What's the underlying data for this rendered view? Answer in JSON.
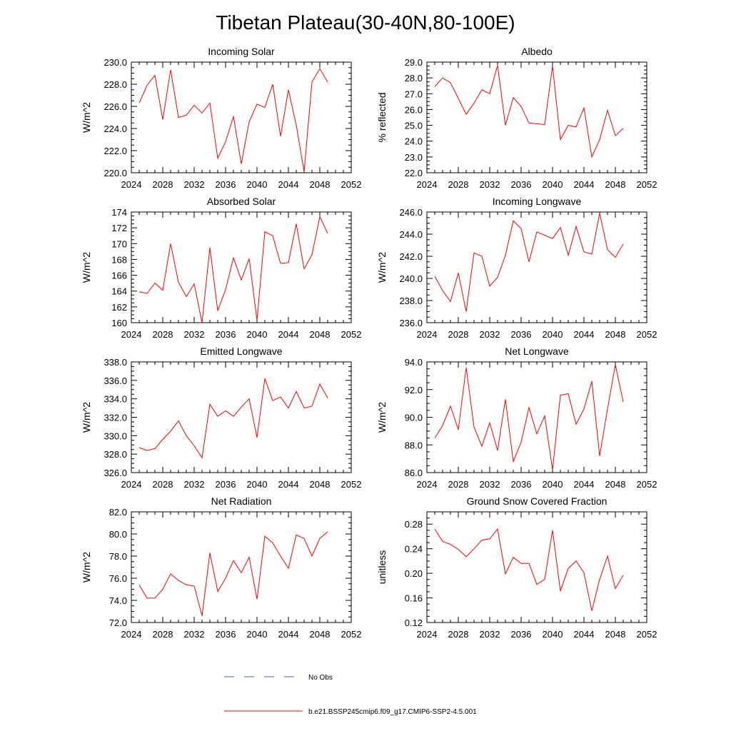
{
  "title": "Tibetan Plateau(30-40N,80-100E)",
  "colors": {
    "model": "#ff0000",
    "obs": "#4a5fd0",
    "axis": "#000000"
  },
  "legend": {
    "obs_label": "No Obs",
    "model_label": "b.e21.BSSP245cmip6.f09_g17.CMIP6-SSP2-4.5.001"
  },
  "chart_data": [
    {
      "type": "line",
      "title": "Incoming Solar",
      "xlabel": "",
      "ylabel": "W/m^2",
      "xlim": [
        2024,
        2052
      ],
      "ylim": [
        220,
        230
      ],
      "xticks": [
        2024,
        2028,
        2032,
        2036,
        2040,
        2044,
        2048,
        2052
      ],
      "yticks": [
        220,
        222,
        224,
        226,
        228,
        230
      ],
      "ytick_labels": [
        "220.0",
        "222.0",
        "224.0",
        "226.0",
        "228.0",
        "230.0"
      ],
      "x": [
        2025,
        2026,
        2027,
        2028,
        2029,
        2030,
        2031,
        2032,
        2033,
        2034,
        2035,
        2036,
        2037,
        2038,
        2039,
        2040,
        2041,
        2042,
        2043,
        2044,
        2045,
        2046,
        2047,
        2048,
        2049
      ],
      "series": [
        {
          "values": [
            226.3,
            227.9,
            228.8,
            224.8,
            229.3,
            225.0,
            225.2,
            226.1,
            225.4,
            226.3,
            221.3,
            222.8,
            225.1,
            220.8,
            224.6,
            226.2,
            225.9,
            228.0,
            223.3,
            227.5,
            224.3,
            220.1,
            228.2,
            229.4,
            228.2
          ]
        }
      ]
    },
    {
      "type": "line",
      "title": "Albedo",
      "xlabel": "",
      "ylabel": "% reflected",
      "xlim": [
        2024,
        2052
      ],
      "ylim": [
        22,
        29
      ],
      "xticks": [
        2024,
        2028,
        2032,
        2036,
        2040,
        2044,
        2048,
        2052
      ],
      "yticks": [
        22,
        23,
        24,
        25,
        26,
        27,
        28,
        29
      ],
      "ytick_labels": [
        "22.0",
        "23.0",
        "24.0",
        "25.0",
        "26.0",
        "27.0",
        "28.0",
        "29.0"
      ],
      "x": [
        2025,
        2026,
        2027,
        2028,
        2029,
        2030,
        2031,
        2032,
        2033,
        2034,
        2035,
        2036,
        2037,
        2038,
        2039,
        2040,
        2041,
        2042,
        2043,
        2044,
        2045,
        2046,
        2047,
        2048,
        2049
      ],
      "series": [
        {
          "values": [
            27.45,
            28.0,
            27.7,
            26.7,
            25.7,
            26.4,
            27.25,
            27.0,
            28.8,
            25.0,
            26.75,
            26.2,
            25.15,
            25.1,
            25.05,
            28.75,
            24.1,
            25.0,
            24.9,
            26.1,
            23.0,
            24.1,
            25.95,
            24.35,
            24.8
          ]
        }
      ]
    },
    {
      "type": "line",
      "title": "Absorbed Solar",
      "xlabel": "",
      "ylabel": "W/m^2",
      "xlim": [
        2024,
        2052
      ],
      "ylim": [
        160,
        174
      ],
      "xticks": [
        2024,
        2028,
        2032,
        2036,
        2040,
        2044,
        2048,
        2052
      ],
      "yticks": [
        160,
        162,
        164,
        166,
        168,
        170,
        172,
        174
      ],
      "ytick_labels": [
        "160",
        "162",
        "164",
        "166",
        "168",
        "170",
        "172",
        "174"
      ],
      "x": [
        2025,
        2026,
        2027,
        2028,
        2029,
        2030,
        2031,
        2032,
        2033,
        2034,
        2035,
        2036,
        2037,
        2038,
        2039,
        2040,
        2041,
        2042,
        2043,
        2044,
        2045,
        2046,
        2047,
        2048,
        2049
      ],
      "series": [
        {
          "values": [
            163.9,
            163.7,
            165.0,
            164.1,
            170.0,
            165.1,
            163.3,
            164.9,
            160.0,
            169.5,
            161.5,
            164.2,
            168.2,
            165.4,
            168.1,
            160.3,
            171.5,
            171.0,
            167.5,
            167.6,
            172.5,
            166.8,
            168.6,
            173.4,
            171.3
          ]
        }
      ]
    },
    {
      "type": "line",
      "title": "Incoming Longwave",
      "xlabel": "",
      "ylabel": "W/m^2",
      "xlim": [
        2024,
        2052
      ],
      "ylim": [
        236,
        246
      ],
      "xticks": [
        2024,
        2028,
        2032,
        2036,
        2040,
        2044,
        2048,
        2052
      ],
      "yticks": [
        236,
        238,
        240,
        242,
        244,
        246
      ],
      "ytick_labels": [
        "236.0",
        "238.0",
        "240.0",
        "242.0",
        "244.0",
        "246.0"
      ],
      "x": [
        2025,
        2026,
        2027,
        2028,
        2029,
        2030,
        2031,
        2032,
        2033,
        2034,
        2035,
        2036,
        2037,
        2038,
        2039,
        2040,
        2041,
        2042,
        2043,
        2044,
        2045,
        2046,
        2047,
        2048,
        2049
      ],
      "series": [
        {
          "values": [
            240.2,
            238.9,
            237.9,
            240.5,
            237.0,
            242.3,
            242.0,
            239.3,
            240.1,
            242.1,
            245.2,
            244.5,
            241.5,
            244.2,
            243.9,
            243.6,
            244.6,
            242.1,
            244.7,
            242.4,
            242.2,
            245.9,
            242.6,
            241.9,
            243.1
          ]
        }
      ]
    },
    {
      "type": "line",
      "title": "Emitted Longwave",
      "xlabel": "",
      "ylabel": "W/m^2",
      "xlim": [
        2024,
        2052
      ],
      "ylim": [
        326,
        338
      ],
      "xticks": [
        2024,
        2028,
        2032,
        2036,
        2040,
        2044,
        2048,
        2052
      ],
      "yticks": [
        326,
        328,
        330,
        332,
        334,
        336,
        338
      ],
      "ytick_labels": [
        "326.0",
        "328.0",
        "330.0",
        "332.0",
        "334.0",
        "336.0",
        "338.0"
      ],
      "x": [
        2025,
        2026,
        2027,
        2028,
        2029,
        2030,
        2031,
        2032,
        2033,
        2034,
        2035,
        2036,
        2037,
        2038,
        2039,
        2040,
        2041,
        2042,
        2043,
        2044,
        2045,
        2046,
        2047,
        2048,
        2049
      ],
      "series": [
        {
          "values": [
            328.7,
            328.4,
            328.6,
            329.6,
            330.5,
            331.6,
            330.0,
            328.9,
            327.6,
            333.4,
            332.1,
            332.7,
            332.1,
            333.1,
            334.0,
            329.8,
            336.2,
            333.8,
            334.2,
            333.0,
            334.8,
            333.0,
            333.2,
            335.6,
            334.1
          ]
        }
      ]
    },
    {
      "type": "line",
      "title": "Net Longwave",
      "xlabel": "",
      "ylabel": "W/m^2",
      "xlim": [
        2024,
        2052
      ],
      "ylim": [
        86,
        94
      ],
      "xticks": [
        2024,
        2028,
        2032,
        2036,
        2040,
        2044,
        2048,
        2052
      ],
      "yticks": [
        86,
        88,
        90,
        92,
        94
      ],
      "ytick_labels": [
        "86.0",
        "88.0",
        "90.0",
        "92.0",
        "94.0"
      ],
      "x": [
        2025,
        2026,
        2027,
        2028,
        2029,
        2030,
        2031,
        2032,
        2033,
        2034,
        2035,
        2036,
        2037,
        2038,
        2039,
        2040,
        2041,
        2042,
        2043,
        2044,
        2045,
        2046,
        2047,
        2048,
        2049
      ],
      "series": [
        {
          "values": [
            88.5,
            89.4,
            90.8,
            89.1,
            93.6,
            89.3,
            87.9,
            89.6,
            87.6,
            91.3,
            86.8,
            88.2,
            90.7,
            88.8,
            90.1,
            86.2,
            91.6,
            91.7,
            89.5,
            90.6,
            92.6,
            87.2,
            90.6,
            93.8,
            91.1
          ]
        }
      ]
    },
    {
      "type": "line",
      "title": "Net Radiation",
      "xlabel": "",
      "ylabel": "W/m^2",
      "xlim": [
        2024,
        2052
      ],
      "ylim": [
        72,
        82
      ],
      "xticks": [
        2024,
        2028,
        2032,
        2036,
        2040,
        2044,
        2048,
        2052
      ],
      "yticks": [
        72,
        74,
        76,
        78,
        80,
        82
      ],
      "ytick_labels": [
        "72.0",
        "74.0",
        "76.0",
        "78.0",
        "80.0",
        "82.0"
      ],
      "x": [
        2025,
        2026,
        2027,
        2028,
        2029,
        2030,
        2031,
        2032,
        2033,
        2034,
        2035,
        2036,
        2037,
        2038,
        2039,
        2040,
        2041,
        2042,
        2043,
        2044,
        2045,
        2046,
        2047,
        2048,
        2049
      ],
      "series": [
        {
          "values": [
            75.4,
            74.2,
            74.2,
            75.0,
            76.4,
            75.8,
            75.4,
            75.3,
            72.6,
            78.3,
            74.8,
            76.0,
            77.6,
            76.5,
            77.9,
            74.1,
            79.8,
            79.2,
            78.0,
            76.9,
            79.9,
            79.6,
            78.0,
            79.6,
            80.2
          ]
        }
      ]
    },
    {
      "type": "line",
      "title": "Ground Snow Covered Fraction",
      "xlabel": "",
      "ylabel": "unitless",
      "xlim": [
        2024,
        2052
      ],
      "ylim": [
        0.12,
        0.3
      ],
      "xticks": [
        2024,
        2028,
        2032,
        2036,
        2040,
        2044,
        2048,
        2052
      ],
      "yticks": [
        0.12,
        0.16,
        0.2,
        0.24,
        0.28
      ],
      "ytick_labels": [
        "0.12",
        "0.16",
        "0.20",
        "0.24",
        "0.28"
      ],
      "x": [
        2025,
        2026,
        2027,
        2028,
        2029,
        2030,
        2031,
        2032,
        2033,
        2034,
        2035,
        2036,
        2037,
        2038,
        2039,
        2040,
        2041,
        2042,
        2043,
        2044,
        2045,
        2046,
        2047,
        2048,
        2049
      ],
      "series": [
        {
          "values": [
            0.272,
            0.252,
            0.247,
            0.239,
            0.227,
            0.24,
            0.254,
            0.256,
            0.272,
            0.199,
            0.226,
            0.216,
            0.216,
            0.182,
            0.19,
            0.27,
            0.171,
            0.208,
            0.22,
            0.201,
            0.139,
            0.19,
            0.228,
            0.175,
            0.197
          ]
        }
      ]
    }
  ]
}
